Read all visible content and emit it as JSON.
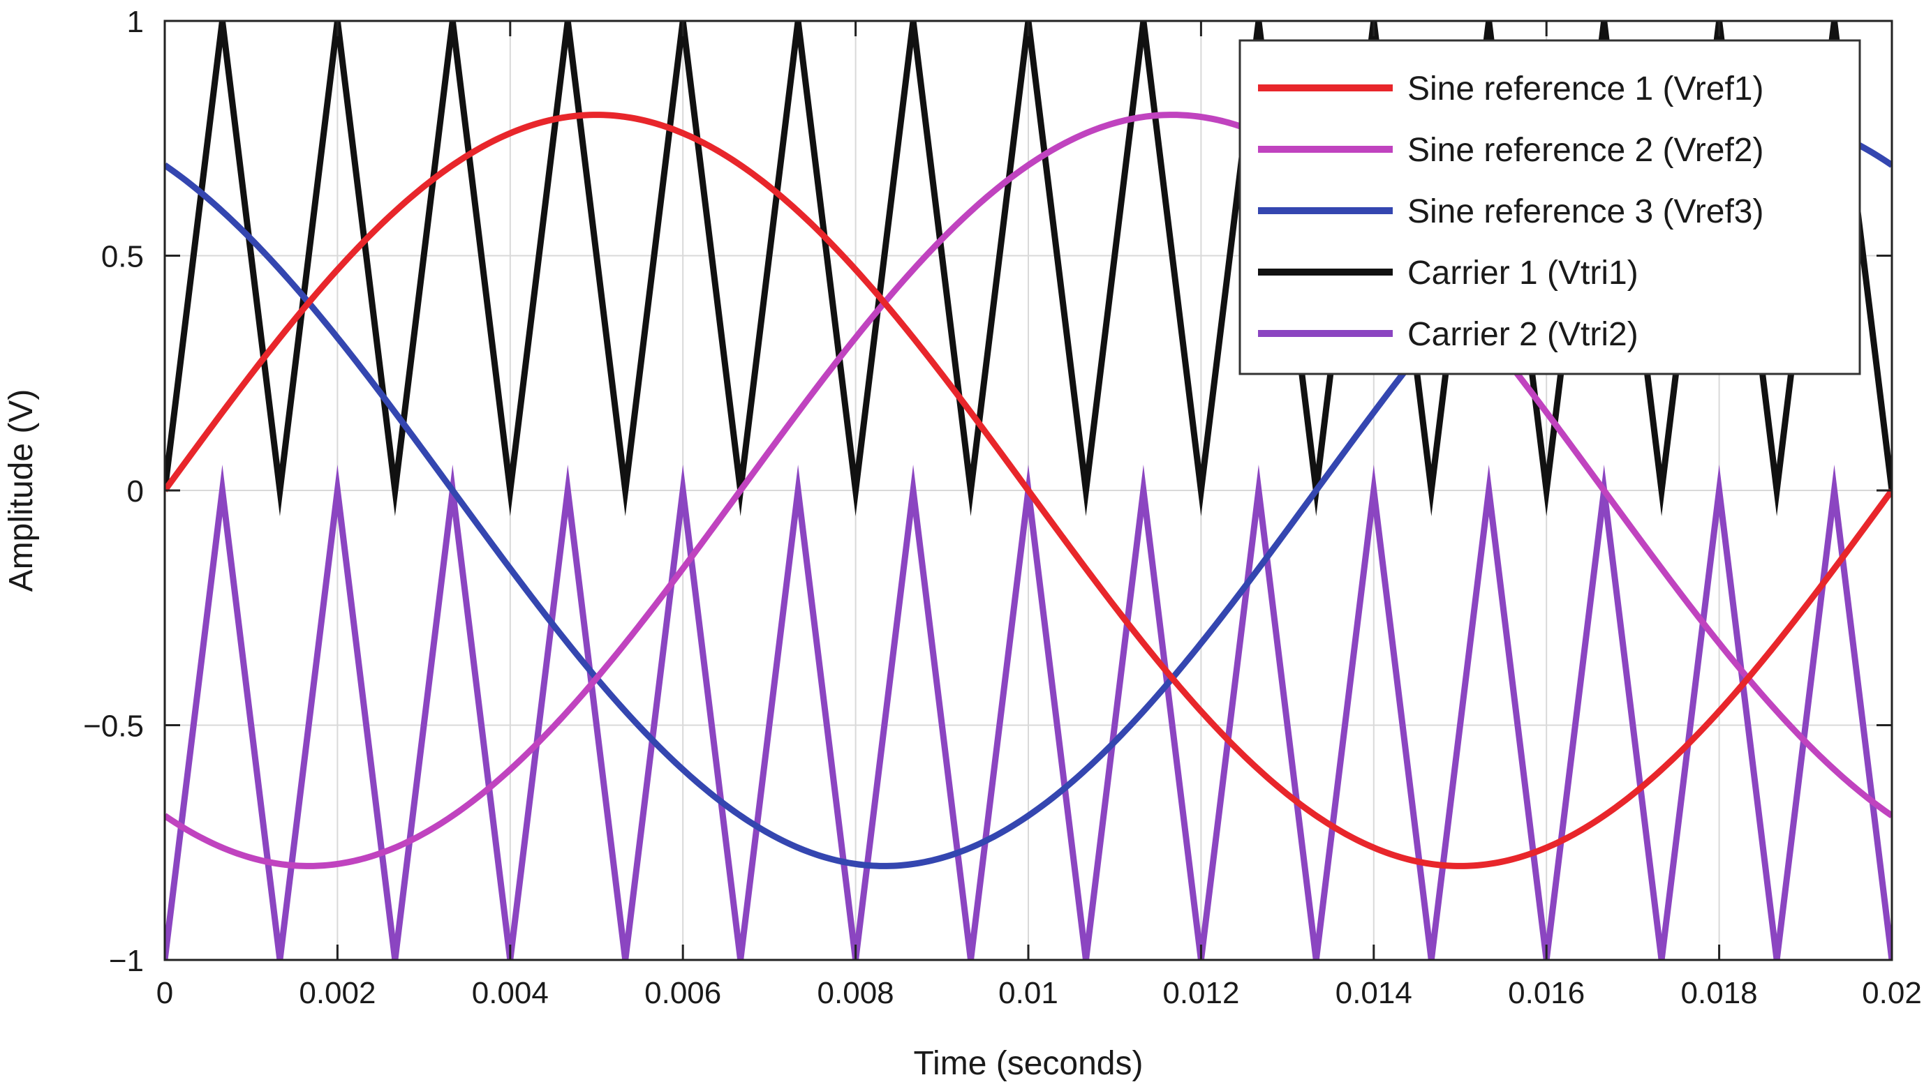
{
  "chart_data": {
    "type": "line",
    "title": "",
    "xlabel": "Time (seconds)",
    "ylabel": "Amplitude (V)",
    "xlim": [
      0,
      0.02
    ],
    "ylim": [
      -1,
      1
    ],
    "grid": true,
    "legend_position": "top-right",
    "x_ticks": [
      0,
      0.002,
      0.004,
      0.006,
      0.008,
      0.01,
      0.012,
      0.014,
      0.016,
      0.018,
      0.02
    ],
    "x_tick_labels": [
      "0",
      "0.002",
      "0.004",
      "0.006",
      "0.008",
      "0.01",
      "0.012",
      "0.014",
      "0.016",
      "0.018",
      "0.02"
    ],
    "y_ticks": [
      -1,
      -0.5,
      0,
      0.5,
      1
    ],
    "y_tick_labels": [
      "−1",
      "−0.5",
      "0",
      "0.5",
      "1"
    ],
    "series": [
      {
        "name": "Sine reference 1 (Vref1)",
        "kind": "sine",
        "amplitude": 0.8,
        "frequency_hz": 50,
        "phase_deg": 0,
        "color": "#e8262b"
      },
      {
        "name": "Sine reference 2 (Vref2)",
        "kind": "sine",
        "amplitude": 0.8,
        "frequency_hz": 50,
        "phase_deg": -120,
        "color": "#c043bf"
      },
      {
        "name": "Sine reference 3 (Vref3)",
        "kind": "sine",
        "amplitude": 0.8,
        "frequency_hz": 50,
        "phase_deg": 120,
        "color": "#3446b0"
      },
      {
        "name": "Carrier 1 (Vtri1)",
        "kind": "triangle",
        "period_s": 0.0013333,
        "min": 0,
        "max": 1,
        "x": [
          0,
          0.00066667,
          0.0013333,
          0.002,
          0.0026667,
          0.0033333,
          0.004,
          0.0046667,
          0.0053333,
          0.006,
          0.0066667,
          0.0073333,
          0.008,
          0.0086667,
          0.0093333,
          0.01,
          0.010667,
          0.011333,
          0.012,
          0.012667,
          0.013333,
          0.014,
          0.014667,
          0.015333,
          0.016,
          0.016667,
          0.017333,
          0.018,
          0.018667,
          0.019333,
          0.02
        ],
        "y": [
          0,
          1,
          0,
          1,
          0,
          1,
          0,
          1,
          0,
          1,
          0,
          1,
          0,
          1,
          0,
          1,
          0,
          1,
          0,
          1,
          0,
          1,
          0,
          1,
          0,
          1,
          0,
          1,
          0,
          1,
          0
        ],
        "color": "#111111"
      },
      {
        "name": "Carrier 2 (Vtri2)",
        "kind": "triangle",
        "period_s": 0.0013333,
        "min": -1,
        "max": 0,
        "x": [
          0,
          0.00066667,
          0.0013333,
          0.002,
          0.0026667,
          0.0033333,
          0.004,
          0.0046667,
          0.0053333,
          0.006,
          0.0066667,
          0.0073333,
          0.008,
          0.0086667,
          0.0093333,
          0.01,
          0.010667,
          0.011333,
          0.012,
          0.012667,
          0.013333,
          0.014,
          0.014667,
          0.015333,
          0.016,
          0.016667,
          0.017333,
          0.018,
          0.018667,
          0.019333,
          0.02
        ],
        "y": [
          -1,
          0,
          -1,
          0,
          -1,
          0,
          -1,
          0,
          -1,
          0,
          -1,
          0,
          -1,
          0,
          -1,
          0,
          -1,
          0,
          -1,
          0,
          -1,
          0,
          -1,
          0,
          -1,
          0,
          -1,
          0,
          -1,
          0,
          -1
        ],
        "color": "#8b45c1"
      }
    ]
  }
}
